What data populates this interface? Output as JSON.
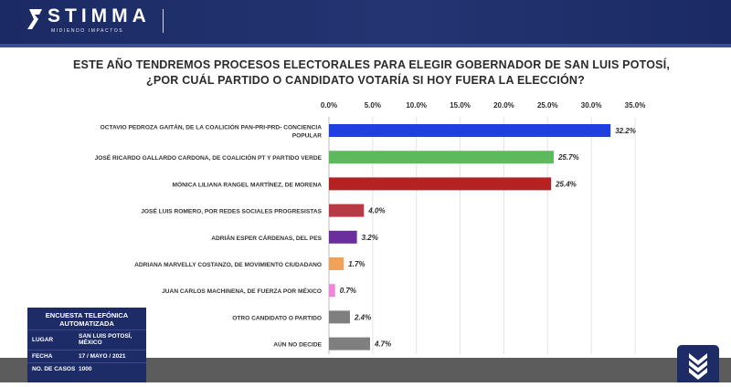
{
  "header": {
    "brand": "STIMMA",
    "tagline": "MIDIENDO IMPACTOS",
    "background_color": "#1b2a63"
  },
  "chart_data": {
    "type": "bar",
    "orientation": "horizontal",
    "title": [
      "ESTE AÑO TENDREMOS PROCESOS ELECTORALES PARA ELEGIR GOBERNADOR DE SAN LUIS POTOSÍ,",
      "¿POR CUÁL PARTIDO O CANDIDATO VOTARÍA SI HOY FUERA LA ELECCIÓN?"
    ],
    "xlim": [
      0,
      35
    ],
    "ticks": [
      "0.0%",
      "5.0%",
      "10.0%",
      "15.0%",
      "20.0%",
      "25.0%",
      "30.0%",
      "35.0%"
    ],
    "grid": true,
    "legend": "none",
    "categories": [
      [
        "OCTAVIO PEDROZA GAITÁN, DE LA COALICIÓN PAN-PRI-PRD- CONCIENCIA",
        "POPULAR"
      ],
      [
        "JOSÉ RICARDO GALLARDO CARDONA, DE COALICIÓN PT Y PARTIDO VERDE"
      ],
      [
        "MÓNICA LILIANA RANGEL MARTÍNEZ, DE MORENA"
      ],
      [
        "JOSÉ LUIS ROMERO, POR REDES SOCIALES PROGRESISTAS"
      ],
      [
        "ADRIÁN ESPER CÁRDENAS, DEL PES"
      ],
      [
        "ADRIANA MARVELLY COSTANZO, DE MOVIMIENTO CIUDADANO"
      ],
      [
        "JUAN CARLOS MACHINENA, DE FUERZA POR MÉXICO"
      ],
      [
        "OTRO CANDIDATO O PARTIDO"
      ],
      [
        "AÚN NO DECIDE"
      ]
    ],
    "values": [
      32.2,
      25.7,
      25.4,
      4.0,
      3.2,
      1.7,
      0.7,
      2.4,
      4.7
    ],
    "value_labels": [
      "32.2%",
      "25.7%",
      "25.4%",
      "4.0%",
      "3.2%",
      "1.7%",
      "0.7%",
      "2.4%",
      "4.7%"
    ],
    "colors": [
      "#1f3fe0",
      "#5cba5c",
      "#b52222",
      "#b83a44",
      "#6a2f9c",
      "#f0a25a",
      "#ef86d8",
      "#7f7f7f",
      "#7f7f7f"
    ]
  },
  "info_box": {
    "title": "ENCUESTA TELEFÓNICA AUTOMATIZADA",
    "rows": [
      {
        "label": "LUGAR",
        "value": "SAN LUIS POTOSÍ, MÉXICO"
      },
      {
        "label": "FECHA",
        "value": "17 / MAYO / 2021"
      },
      {
        "label": "NO. DE CASOS",
        "value": "1000"
      }
    ]
  }
}
